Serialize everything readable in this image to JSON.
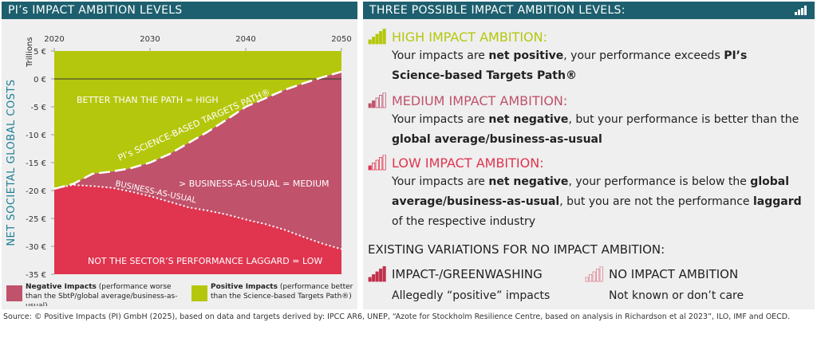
{
  "chart_data": {
    "type": "line",
    "title": "PI’s IMPACT AMBITION LEVELS",
    "y_label": "NET SOCIETAL GLOBAL COSTS",
    "units": "Trillions",
    "x": [
      2020,
      2022,
      2024,
      2026,
      2028,
      2030,
      2032,
      2034,
      2036,
      2038,
      2040,
      2042,
      2044,
      2046,
      2048,
      2050
    ],
    "series": [
      {
        "name": "PI’s SCIENCE-BASED TARGETS PATH®",
        "color": "#ffffff",
        "style": "dashed",
        "values": [
          -19.7,
          -18.8,
          -17,
          -16.6,
          -16,
          -15,
          -13.5,
          -11.5,
          -9.5,
          -7.3,
          -5,
          -3.5,
          -2,
          -0.8,
          0.3,
          1.3
        ]
      },
      {
        "name": "BUSINESS-AS-USUAL",
        "color": "#ffffff",
        "style": "dotted",
        "values": [
          -19.6,
          -19,
          -19.2,
          -19.5,
          -20.2,
          -21,
          -22,
          -23,
          -23.6,
          -24.3,
          -25.2,
          -26,
          -27,
          -28.3,
          -29.5,
          -30.5
        ]
      }
    ],
    "fill_colors": {
      "high": "#b5c70c",
      "medium": "#c0526b",
      "low": "#e0344f"
    },
    "reference_line": 0,
    "annotations": {
      "high": "BETTER THAN THE PATH = HIGH",
      "medium": "> BUSINESS-AS-USUAL = MEDIUM",
      "low": "NOT THE SECTOR’S PERFORMANCE LAGGARD = LOW"
    },
    "xlim": [
      2020,
      2050
    ],
    "xticks": [
      2020,
      2030,
      2040,
      2050
    ],
    "ylim": [
      -35,
      5
    ],
    "yticks": [
      {
        "value": 5,
        "label": "5 €"
      },
      {
        "value": 0,
        "label": "0 €"
      },
      {
        "value": -5,
        "label": "-5 €"
      },
      {
        "value": -10,
        "label": "-10 €"
      },
      {
        "value": -15,
        "label": "-15 €"
      },
      {
        "value": -20,
        "label": "-20 €"
      },
      {
        "value": -25,
        "label": "-25 €"
      },
      {
        "value": -30,
        "label": "-30 €"
      },
      {
        "value": -35,
        "label": "-35 €"
      }
    ],
    "legend": [
      {
        "label": "Negative Impacts",
        "text": "(performance worse than the SbtP/global average/business-as-usual)",
        "color": "#c0526b"
      },
      {
        "label": "Positive Impacts",
        "text": "(performance better than the Science-based Targets Path®)",
        "color": "#b5c70c"
      }
    ]
  },
  "panel": {
    "title": "THREE POSSIBLE IMPACT AMBITION LEVELS:",
    "levels": [
      {
        "title": "HIGH IMPACT AMBITION:",
        "color": "#b5c70c",
        "text": [
          {
            "text": "Your impacts are ",
            "bold": false
          },
          {
            "text": "net positive",
            "bold": true
          },
          {
            "text": ", your performance exceeds ",
            "bold": false
          },
          {
            "text": "PI’s Science-based Targets Path®",
            "bold": true
          }
        ]
      },
      {
        "title": "MEDIUM IMPACT AMBITION:",
        "color": "#c0526b",
        "text": [
          {
            "text": "Your impacts are ",
            "bold": false
          },
          {
            "text": "net negative",
            "bold": true
          },
          {
            "text": ", but your performance is better than the ",
            "bold": false
          },
          {
            "text": "global average/business-as-usual",
            "bold": true
          }
        ]
      },
      {
        "title": "LOW IMPACT AMBITION:",
        "color": "#e0344f",
        "text": [
          {
            "text": "Your impacts are ",
            "bold": false
          },
          {
            "text": "net negative",
            "bold": true
          },
          {
            "text": ", your performance is below the ",
            "bold": false
          },
          {
            "text": "global average/business-as-usual",
            "bold": true
          },
          {
            "text": ", but you are not the performance ",
            "bold": false
          },
          {
            "text": "laggard",
            "bold": true
          },
          {
            "text": " of the respective industry",
            "bold": false
          }
        ]
      }
    ],
    "variations_title": "EXISTING VARIATIONS FOR NO IMPACT AMBITION:",
    "variations": [
      {
        "title": "IMPACT-/GREENWASHING",
        "text": "Allegedly “positive” impacts"
      },
      {
        "title": "NO IMPACT AMBITION",
        "text": "Not known or don’t care"
      }
    ]
  },
  "source": "Source: © Positive Impacts (PI) GmbH (2025), based on data and targets derived by: IPCC AR6, UNEP, “Azote for Stockholm Resilience Centre, based on analysis in Richardson et al 2023”, ILO, IMF and OECD."
}
